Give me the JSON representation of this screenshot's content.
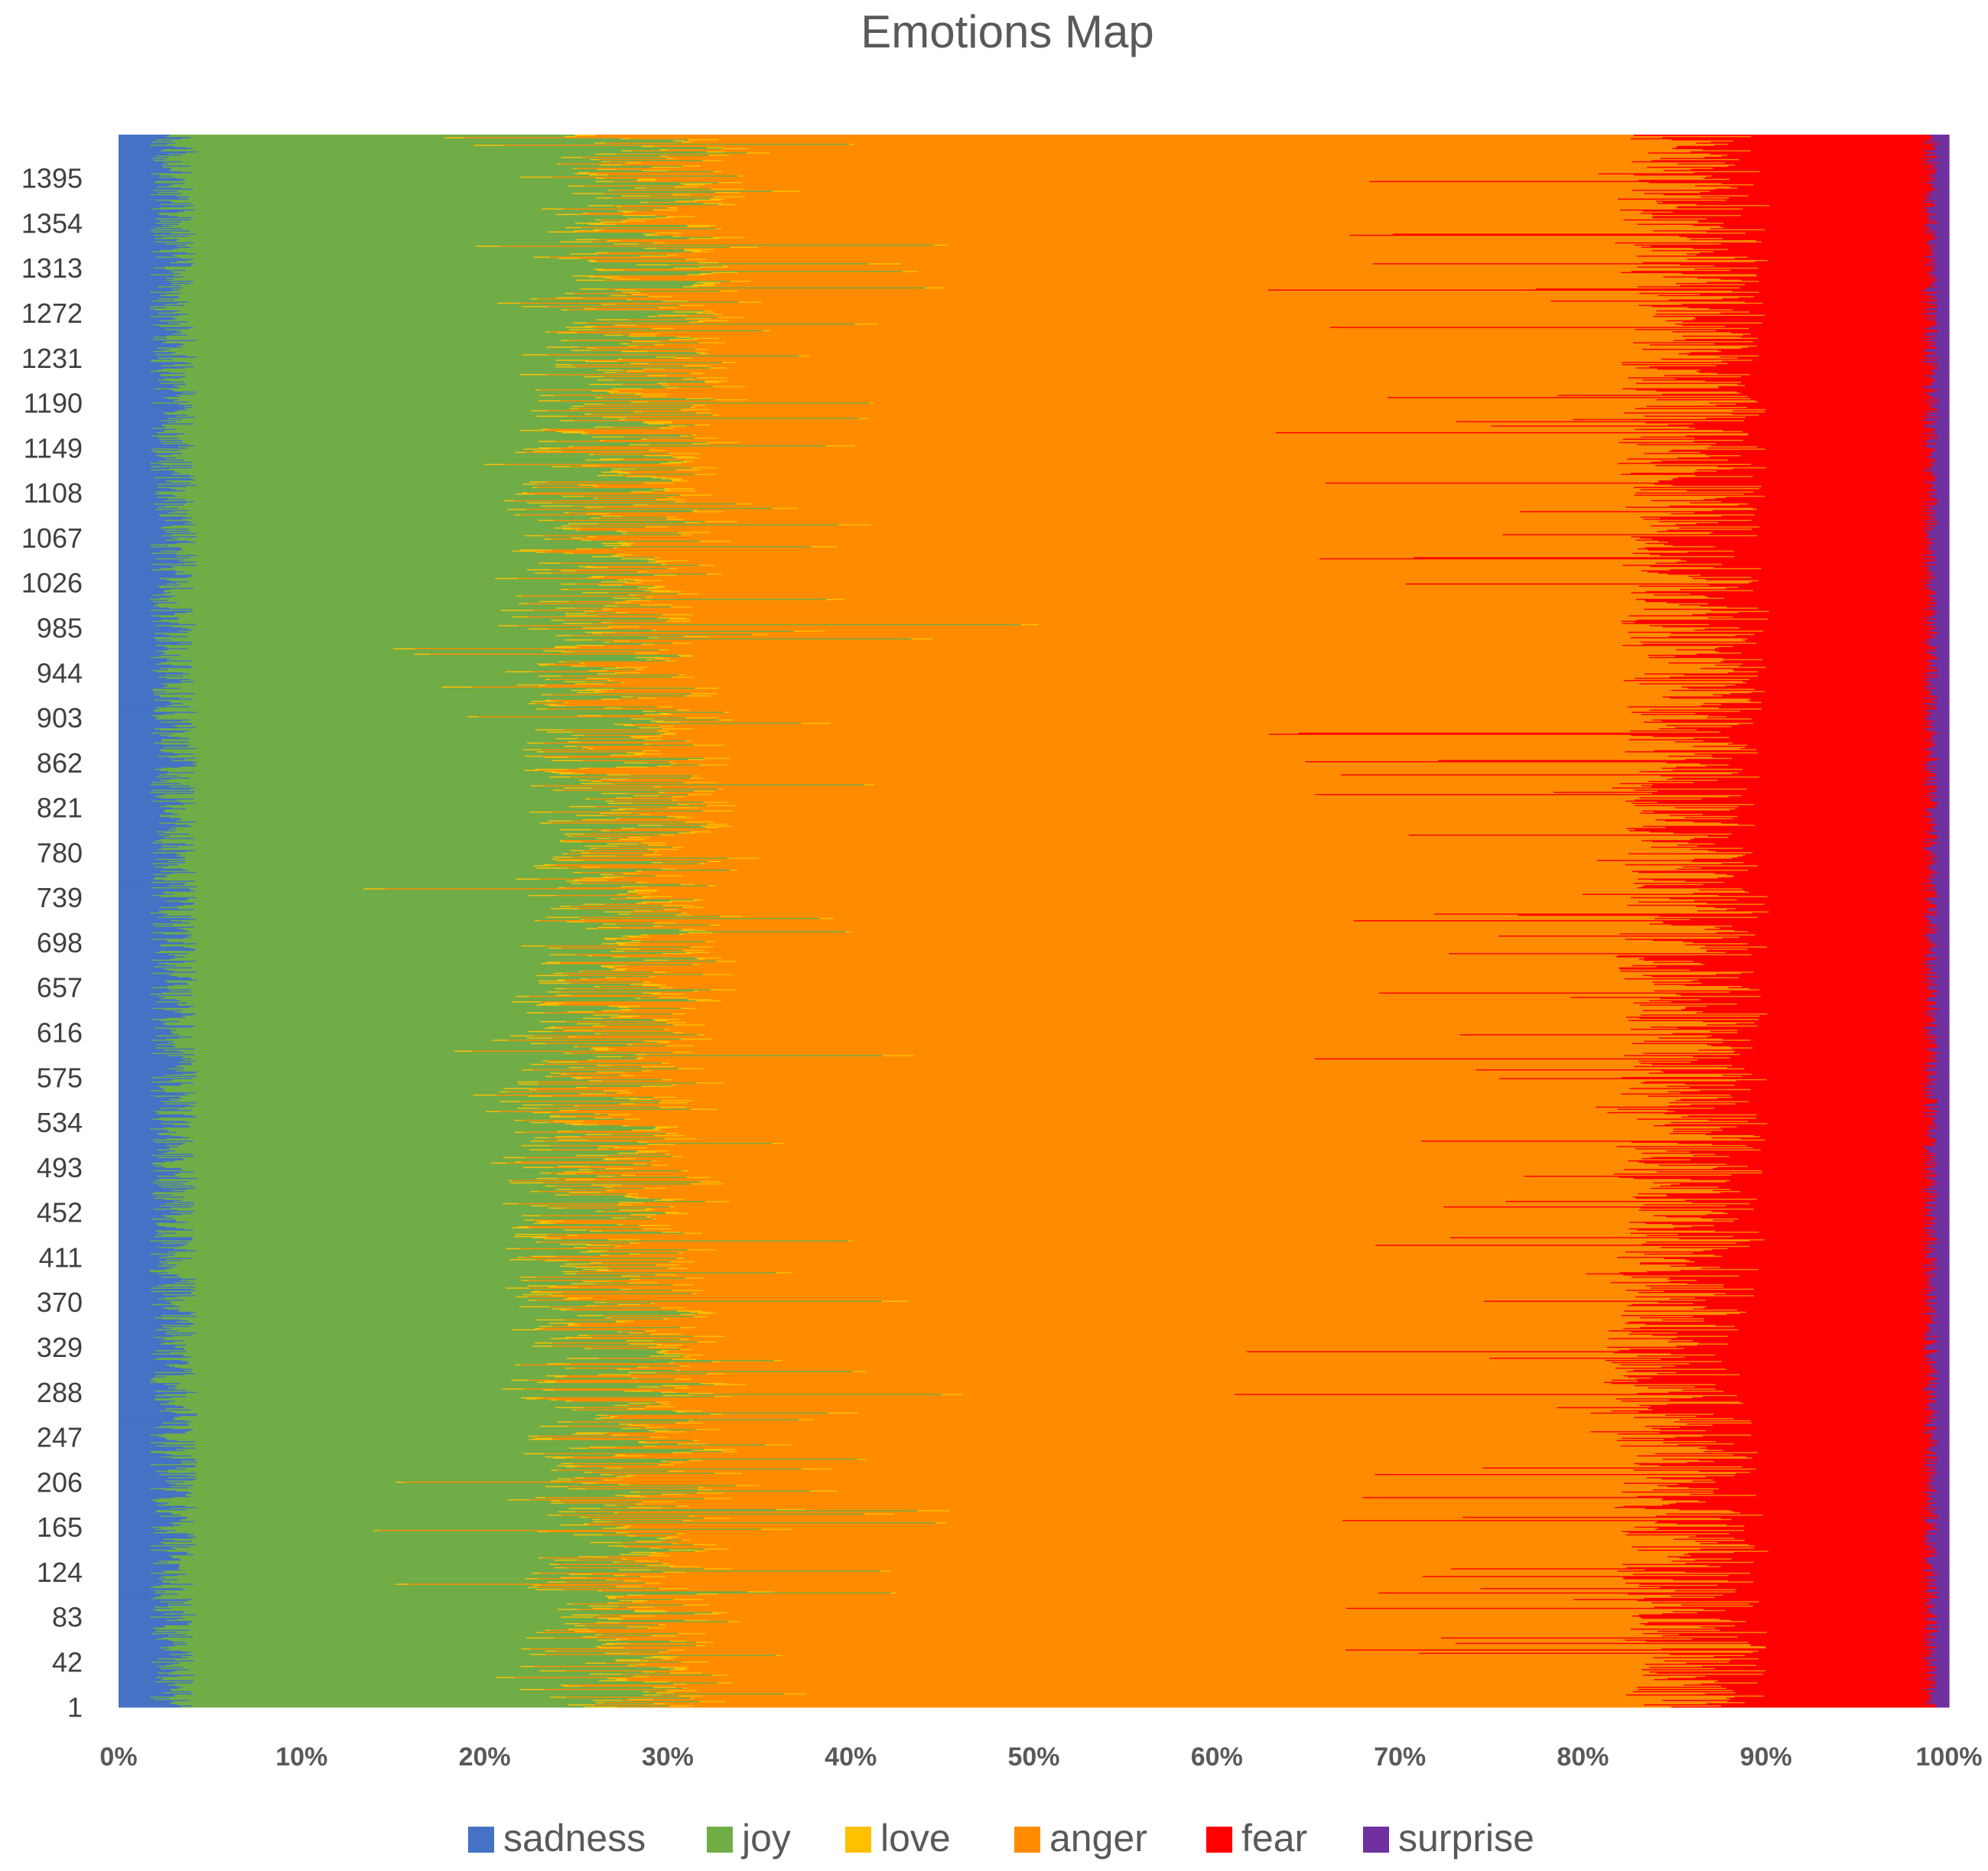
{
  "chart_data": {
    "type": "bar",
    "orientation": "horizontal",
    "stacked": "100%",
    "title": "Emotions Map",
    "xlabel": "",
    "ylabel": "",
    "xlim": [
      0,
      100
    ],
    "ylim": [
      1,
      1434
    ],
    "x_tick_labels": [
      "0%",
      "10%",
      "20%",
      "30%",
      "40%",
      "50%",
      "60%",
      "70%",
      "80%",
      "90%",
      "100%"
    ],
    "y_tick_labels": [
      "1395",
      "1354",
      "1313",
      "1272",
      "1231",
      "1190",
      "1149",
      "1108",
      "1067",
      "1026",
      "985",
      "944",
      "903",
      "862",
      "821",
      "780",
      "739",
      "698",
      "657",
      "616",
      "575",
      "534",
      "493",
      "452",
      "411",
      "370",
      "329",
      "288",
      "247",
      "206",
      "165",
      "124",
      "83",
      "42",
      "1"
    ],
    "legend_position": "bottom",
    "series": [
      {
        "name": "sadness",
        "color": "#4472C4",
        "typical_share_pct": 3
      },
      {
        "name": "joy",
        "color": "#70AD47",
        "typical_share_pct": 24
      },
      {
        "name": "love",
        "color": "#FFC000",
        "typical_share_pct": 1
      },
      {
        "name": "anger",
        "color": "#FF8C00",
        "typical_share_pct": 58
      },
      {
        "name": "fear",
        "color": "#FF0000",
        "typical_share_pct": 13
      },
      {
        "name": "surprise",
        "color": "#7030A0",
        "typical_share_pct": 1
      }
    ],
    "row_profile": [
      {
        "row": 1395,
        "sadness": 3,
        "joy": 26,
        "love": 1,
        "anger": 56,
        "fear": 13,
        "surprise": 1
      },
      {
        "row": 1272,
        "sadness": 3,
        "joy": 25,
        "love": 1,
        "anger": 57,
        "fear": 13,
        "surprise": 1
      },
      {
        "row": 1149,
        "sadness": 3,
        "joy": 24,
        "love": 1,
        "anger": 58,
        "fear": 13,
        "surprise": 1
      },
      {
        "row": 1026,
        "sadness": 3,
        "joy": 23,
        "love": 1,
        "anger": 59,
        "fear": 13,
        "surprise": 1
      },
      {
        "row": 903,
        "sadness": 3,
        "joy": 24,
        "love": 1,
        "anger": 58,
        "fear": 13,
        "surprise": 1
      },
      {
        "row": 780,
        "sadness": 3,
        "joy": 25,
        "love": 1,
        "anger": 57,
        "fear": 13,
        "surprise": 1
      },
      {
        "row": 657,
        "sadness": 3,
        "joy": 24,
        "love": 1,
        "anger": 58,
        "fear": 13,
        "surprise": 1
      },
      {
        "row": 534,
        "sadness": 3,
        "joy": 23,
        "love": 1,
        "anger": 59,
        "fear": 13,
        "surprise": 1
      },
      {
        "row": 411,
        "sadness": 3,
        "joy": 23,
        "love": 1,
        "anger": 59,
        "fear": 13,
        "surprise": 1
      },
      {
        "row": 288,
        "sadness": 3,
        "joy": 24,
        "love": 1,
        "anger": 57,
        "fear": 14,
        "surprise": 1
      },
      {
        "row": 165,
        "sadness": 3,
        "joy": 25,
        "love": 1,
        "anger": 57,
        "fear": 13,
        "surprise": 1
      },
      {
        "row": 42,
        "sadness": 3,
        "joy": 24,
        "love": 1,
        "anger": 58,
        "fear": 13,
        "surprise": 1
      },
      {
        "row": 1,
        "sadness": 3,
        "joy": 24,
        "love": 1,
        "anger": 58,
        "fear": 13,
        "surprise": 1
      }
    ],
    "row_count": 1434
  }
}
